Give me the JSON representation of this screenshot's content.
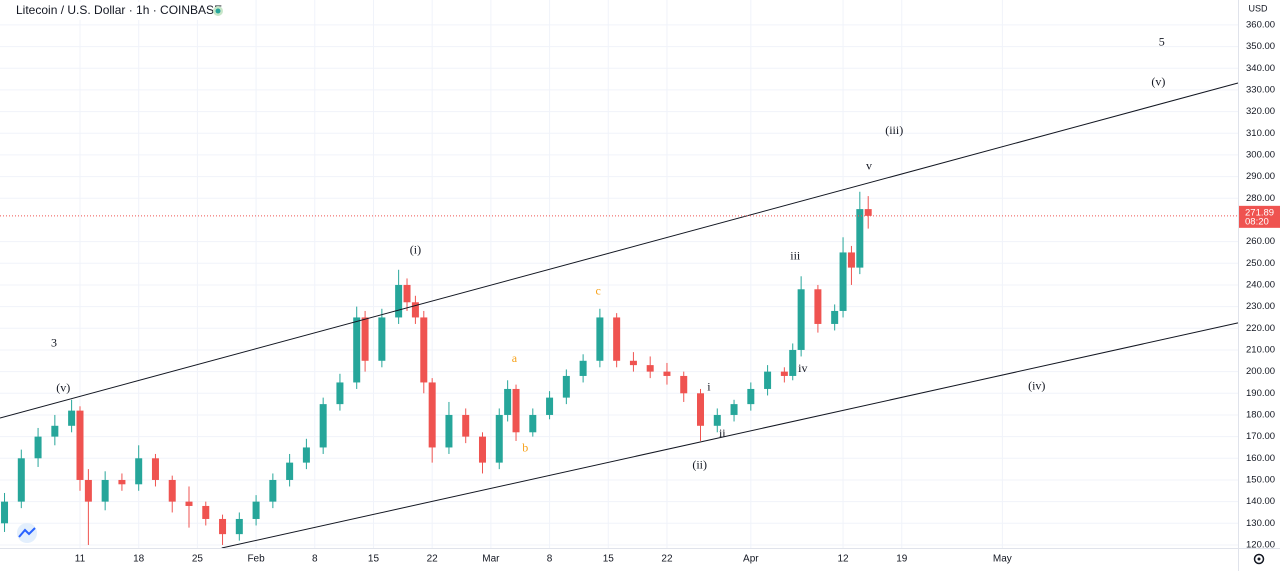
{
  "chart_data": {
    "type": "candlestick",
    "title": "Litecoin / U.S. Dollar · 1h · COINBASE",
    "currency": "USD",
    "up_color": "#26a69a",
    "down_color": "#ef5350",
    "x": [
      2,
      4,
      6,
      8,
      10,
      11,
      12,
      14,
      16,
      18,
      20,
      22,
      24,
      26,
      28,
      30,
      32,
      34,
      36,
      38,
      40,
      42,
      44,
      45,
      47,
      49,
      50,
      51,
      52,
      53,
      55,
      57,
      59,
      61,
      62,
      63,
      65,
      67,
      69,
      71,
      73,
      75,
      77,
      79,
      81,
      83,
      85,
      87,
      89,
      91,
      93,
      95,
      96,
      97,
      99,
      101,
      102,
      103,
      104,
      105
    ],
    "open": [
      130,
      140,
      160,
      170,
      175,
      182,
      150,
      140,
      150,
      148,
      160,
      150,
      140,
      138,
      132,
      125,
      132,
      140,
      150,
      158,
      165,
      185,
      195,
      225,
      205,
      225,
      240,
      232,
      225,
      195,
      165,
      180,
      170,
      158,
      180,
      192,
      172,
      180,
      188,
      198,
      205,
      225,
      205,
      203,
      200,
      198,
      190,
      175,
      180,
      185,
      192,
      200,
      198,
      210,
      238,
      222,
      228,
      255,
      248,
      275
    ],
    "high": [
      144,
      164,
      174,
      180,
      187,
      184,
      155,
      154,
      153,
      166,
      162,
      152,
      147,
      140,
      134,
      135,
      143,
      153,
      162,
      169,
      188,
      199,
      230,
      228,
      229,
      247,
      243,
      235,
      228,
      197,
      186,
      183,
      172,
      183,
      196,
      194,
      183,
      191,
      201,
      208,
      229,
      227,
      209,
      207,
      204,
      200,
      192,
      183,
      187,
      195,
      203,
      202,
      213,
      244,
      240,
      231,
      262,
      258,
      283,
      281
    ],
    "low": [
      126,
      137,
      156,
      166,
      172,
      145,
      120,
      136,
      145,
      145,
      147,
      135,
      128,
      129,
      120,
      122,
      129,
      137,
      147,
      155,
      162,
      182,
      192,
      200,
      202,
      222,
      228,
      222,
      190,
      158,
      162,
      167,
      153,
      155,
      177,
      168,
      170,
      178,
      185,
      195,
      202,
      202,
      200,
      197,
      194,
      186,
      168,
      172,
      177,
      182,
      189,
      195,
      196,
      207,
      218,
      219,
      225,
      240,
      245,
      266
    ],
    "close": [
      140,
      160,
      170,
      175,
      182,
      150,
      140,
      150,
      148,
      160,
      150,
      140,
      138,
      132,
      125,
      132,
      140,
      150,
      158,
      165,
      185,
      195,
      225,
      205,
      225,
      240,
      232,
      225,
      195,
      165,
      180,
      170,
      158,
      180,
      192,
      172,
      180,
      188,
      198,
      205,
      225,
      205,
      203,
      200,
      198,
      190,
      175,
      180,
      185,
      192,
      200,
      198,
      210,
      238,
      222,
      228,
      255,
      248,
      275,
      271.89
    ],
    "last_price": 271.89,
    "countdown": "08:20",
    "xlim": [
      1.46,
      149.1
    ],
    "ylim": [
      118.6,
      371.5
    ],
    "xticks": [
      {
        "value": 11,
        "label": "11"
      },
      {
        "value": 18,
        "label": "18"
      },
      {
        "value": 25,
        "label": "25"
      },
      {
        "value": 32,
        "label": "Feb"
      },
      {
        "value": 39,
        "label": "8"
      },
      {
        "value": 46,
        "label": "15"
      },
      {
        "value": 53,
        "label": "22"
      },
      {
        "value": 60,
        "label": "Mar"
      },
      {
        "value": 67,
        "label": "8"
      },
      {
        "value": 74,
        "label": "15"
      },
      {
        "value": 81,
        "label": "22"
      },
      {
        "value": 91,
        "label": "Apr"
      },
      {
        "value": 102,
        "label": "12"
      },
      {
        "value": 109,
        "label": "19"
      },
      {
        "value": 121,
        "label": "May"
      }
    ],
    "yticks": [
      {
        "value": 120,
        "label": "120.00"
      },
      {
        "value": 130,
        "label": "130.00"
      },
      {
        "value": 140,
        "label": "140.00"
      },
      {
        "value": 150,
        "label": "150.00"
      },
      {
        "value": 160,
        "label": "160.00"
      },
      {
        "value": 170,
        "label": "170.00"
      },
      {
        "value": 180,
        "label": "180.00"
      },
      {
        "value": 190,
        "label": "190.00"
      },
      {
        "value": 200,
        "label": "200.00"
      },
      {
        "value": 210,
        "label": "210.00"
      },
      {
        "value": 220,
        "label": "220.00"
      },
      {
        "value": 230,
        "label": "230.00"
      },
      {
        "value": 240,
        "label": "240.00"
      },
      {
        "value": 250,
        "label": "250.00"
      },
      {
        "value": 260,
        "label": "260.00"
      },
      {
        "value": 280,
        "label": "280.00"
      },
      {
        "value": 290,
        "label": "290.00"
      },
      {
        "value": 300,
        "label": "300.00"
      },
      {
        "value": 310,
        "label": "310.00"
      },
      {
        "value": 320,
        "label": "320.00"
      },
      {
        "value": 330,
        "label": "330.00"
      },
      {
        "value": 340,
        "label": "340.00"
      },
      {
        "value": 350,
        "label": "350.00"
      },
      {
        "value": 360,
        "label": "360.00"
      }
    ],
    "grid": true,
    "trend_lines": [
      {
        "x": [
          1.46,
          149.1
        ],
        "y": [
          178.6,
          333.2
        ]
      },
      {
        "x": [
          27.9,
          149.1
        ],
        "y": [
          118.6,
          222.5
        ]
      }
    ],
    "annotations": [
      {
        "text": "3",
        "x": 7.9,
        "y": 212.8,
        "color": "#131722"
      },
      {
        "text": "(v)",
        "x": 9.0,
        "y": 192,
        "color": "#131722"
      },
      {
        "text": "(i)",
        "x": 51.0,
        "y": 255.7,
        "color": "#131722"
      },
      {
        "text": "a",
        "x": 62.8,
        "y": 205.8,
        "color": "#f7a21b"
      },
      {
        "text": "b",
        "x": 64.1,
        "y": 164.3,
        "color": "#f7a21b"
      },
      {
        "text": "c",
        "x": 72.8,
        "y": 236.8,
        "color": "#f7a21b"
      },
      {
        "text": "i",
        "x": 86.0,
        "y": 192.5,
        "color": "#131722"
      },
      {
        "text": "ii",
        "x": 87.6,
        "y": 171.2,
        "color": "#131722"
      },
      {
        "text": "(ii)",
        "x": 84.9,
        "y": 156.5,
        "color": "#131722"
      },
      {
        "text": "iii",
        "x": 96.3,
        "y": 252.9,
        "color": "#131722"
      },
      {
        "text": "iv",
        "x": 97.2,
        "y": 201.2,
        "color": "#131722"
      },
      {
        "text": "v",
        "x": 105.1,
        "y": 294.5,
        "color": "#131722"
      },
      {
        "text": "(iii)",
        "x": 108.1,
        "y": 311,
        "color": "#131722"
      },
      {
        "text": "(iv)",
        "x": 125.1,
        "y": 193,
        "color": "#131722"
      },
      {
        "text": "5",
        "x": 140.0,
        "y": 351.7,
        "color": "#131722"
      },
      {
        "text": "(v)",
        "x": 139.6,
        "y": 333.2,
        "color": "#131722"
      }
    ]
  }
}
